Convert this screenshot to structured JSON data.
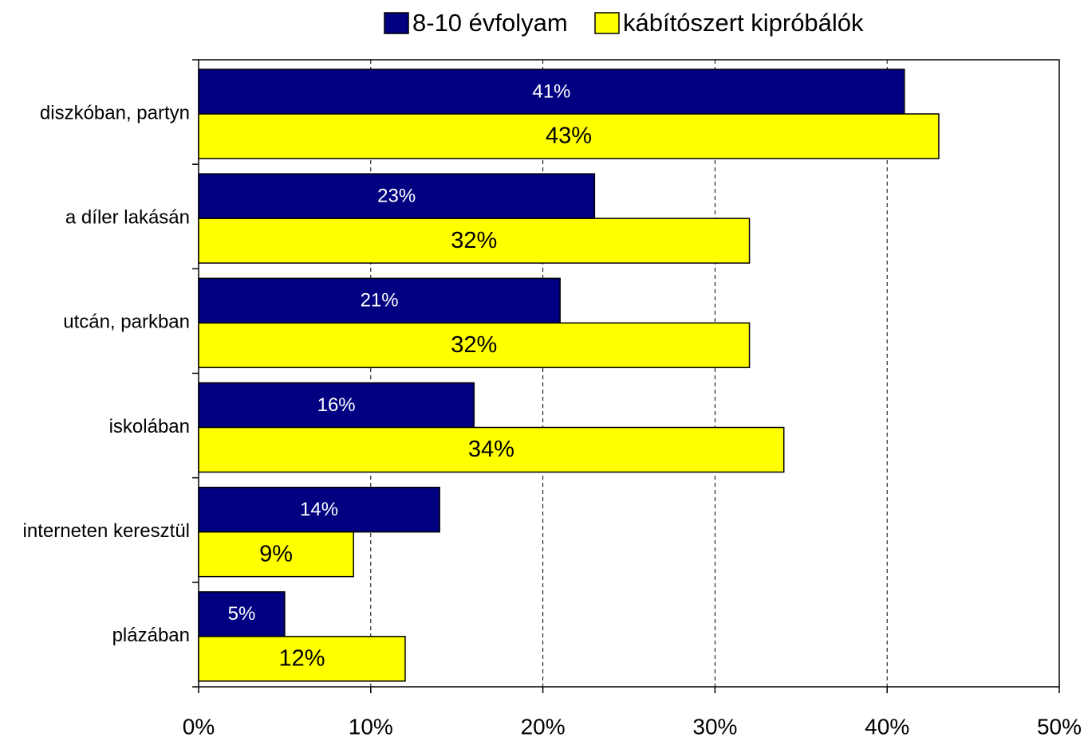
{
  "chart_data": {
    "type": "bar",
    "orientation": "horizontal",
    "categories": [
      "diszkóban, partyn",
      "a díler lakásán",
      "utcán, parkban",
      "iskolában",
      "interneten keresztül",
      "plázában"
    ],
    "series": [
      {
        "name": "8-10 évfolyam",
        "color": "#000080",
        "values": [
          41,
          23,
          21,
          16,
          14,
          5
        ],
        "value_labels": [
          "41%",
          "23%",
          "21%",
          "16%",
          "14%",
          "5%"
        ]
      },
      {
        "name": "kábítószert kipróbálók",
        "color": "#ffff00",
        "values": [
          43,
          32,
          32,
          34,
          9,
          12
        ],
        "value_labels": [
          "43%",
          "32%",
          "32%",
          "34%",
          "9%",
          "12%"
        ]
      }
    ],
    "xlim": [
      0,
      50
    ],
    "xticks": [
      {
        "value": 0,
        "label": "0%"
      },
      {
        "value": 10,
        "label": "10%"
      },
      {
        "value": 20,
        "label": "20%"
      },
      {
        "value": 30,
        "label": "30%"
      },
      {
        "value": 40,
        "label": "40%"
      },
      {
        "value": 50,
        "label": "50%"
      }
    ],
    "grid": true,
    "legend": "top"
  }
}
